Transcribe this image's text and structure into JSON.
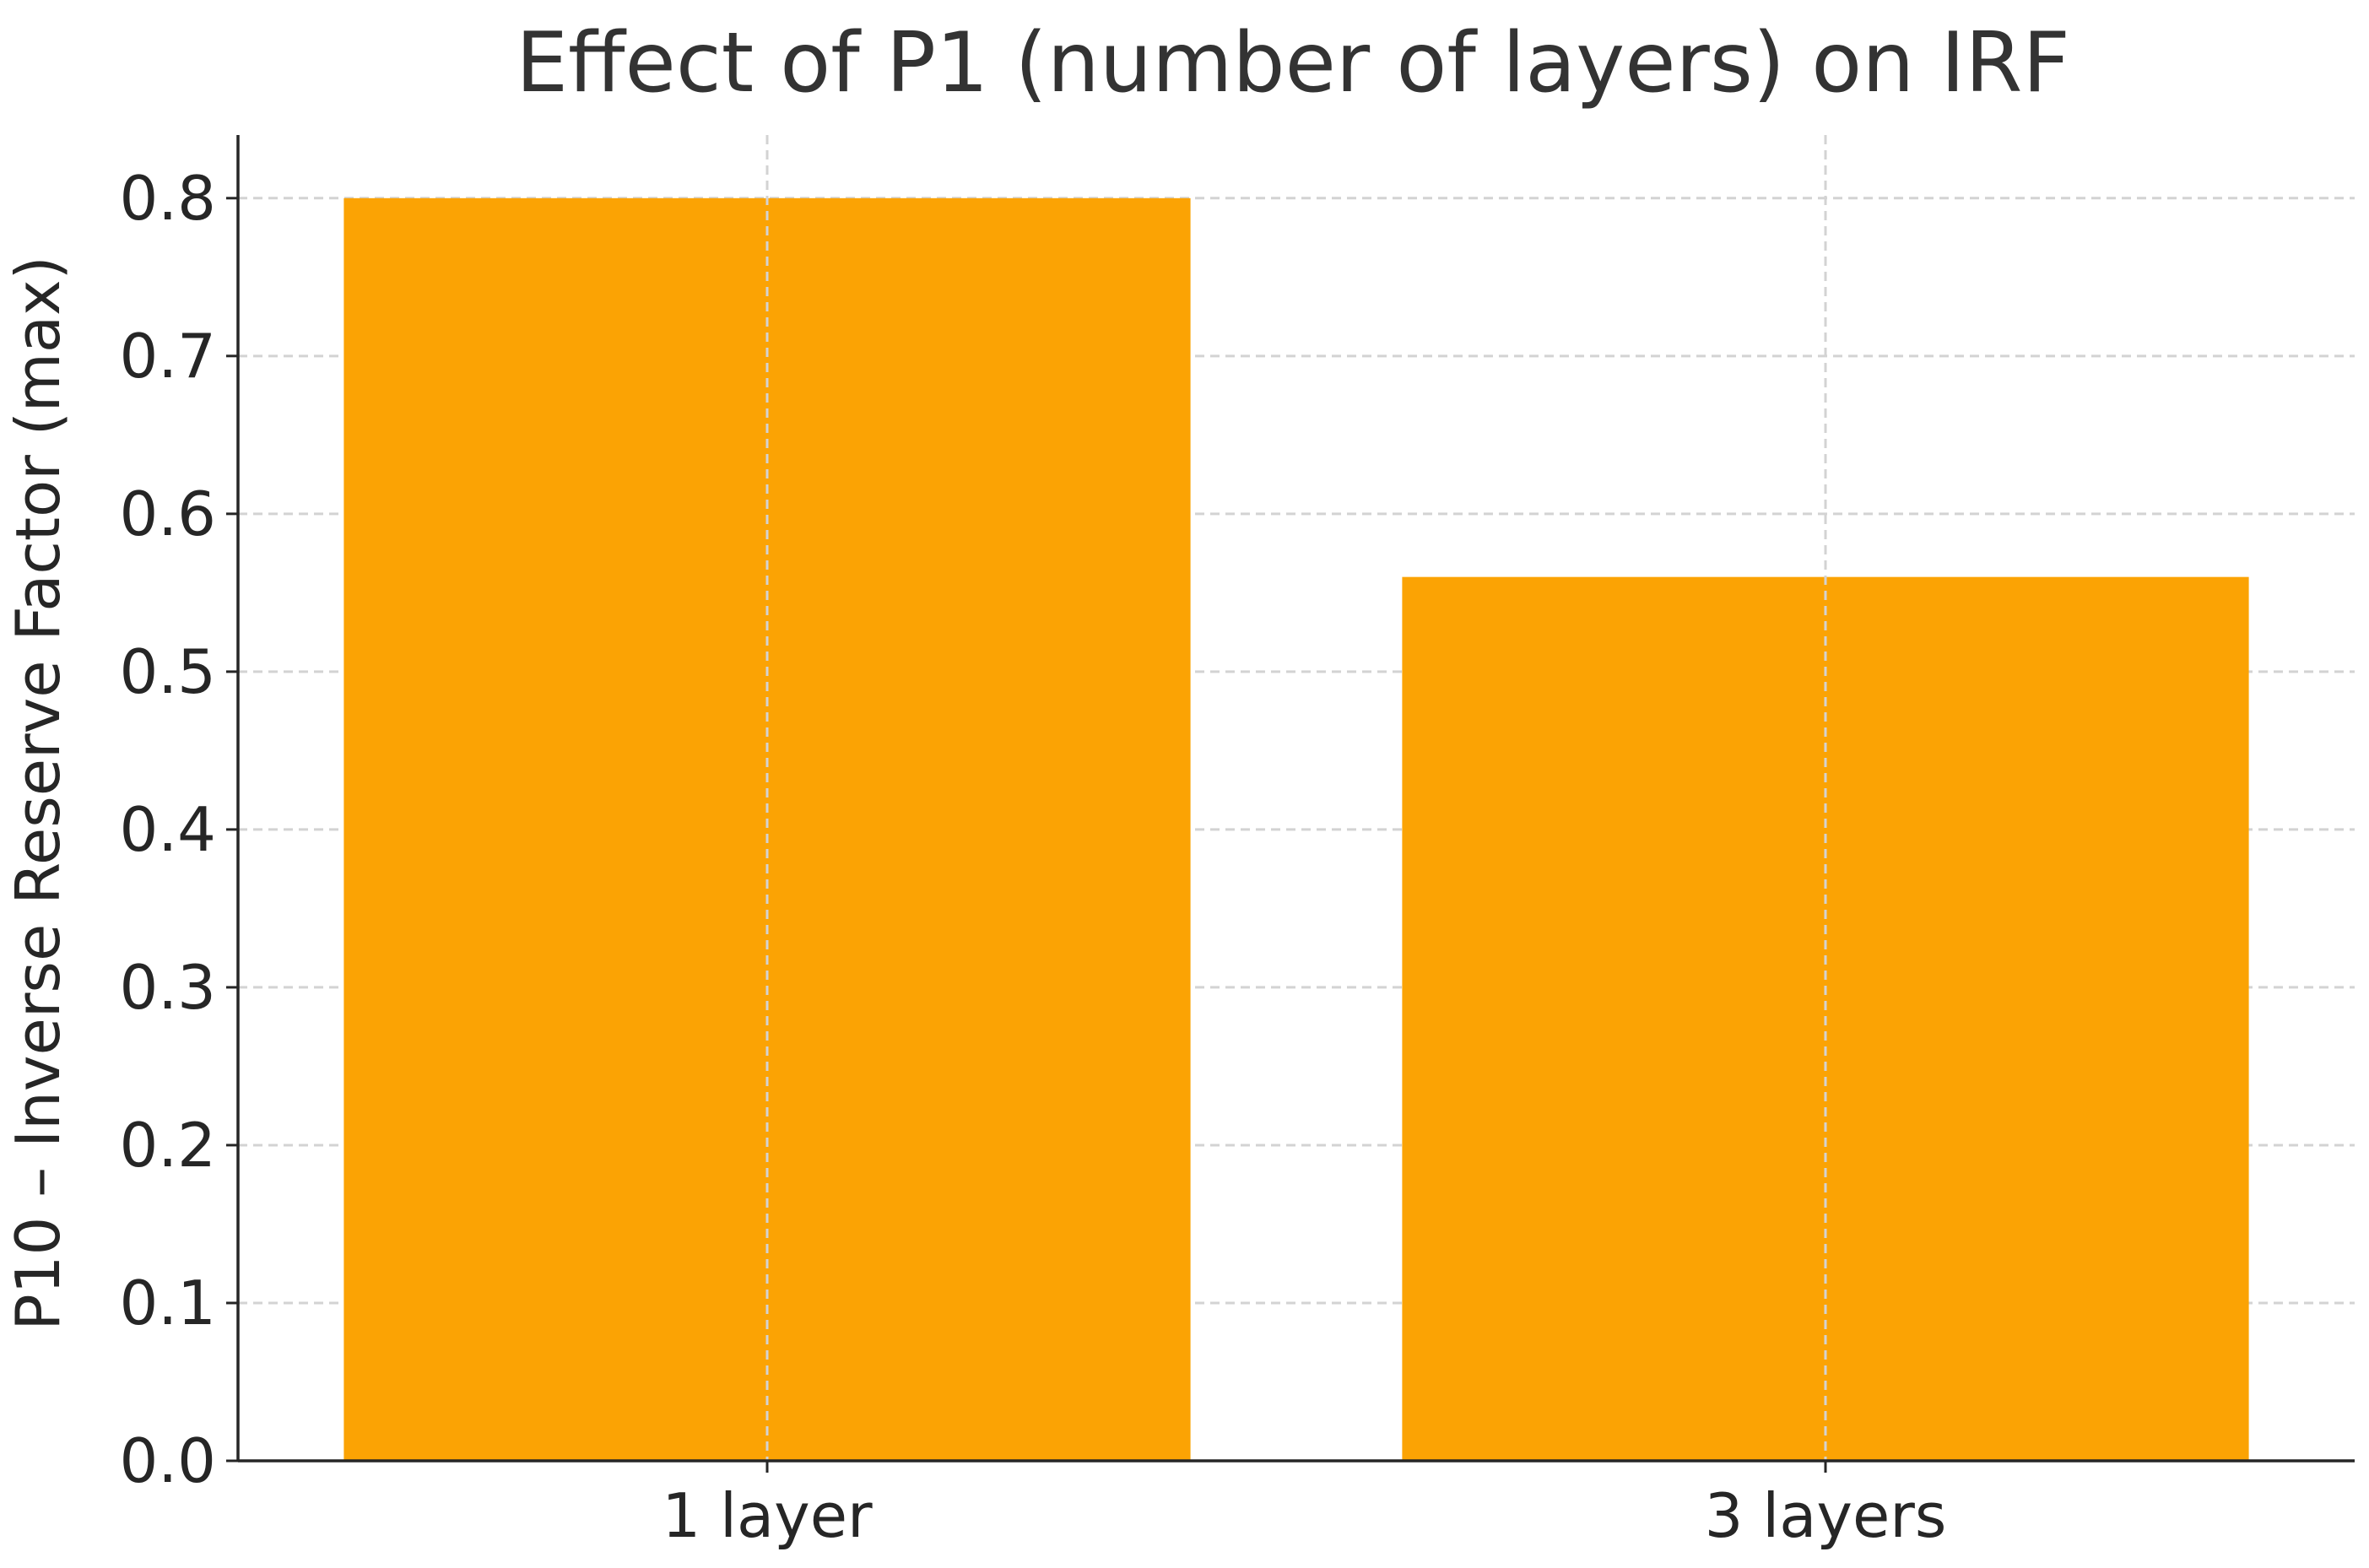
{
  "chart_data": {
    "type": "bar",
    "title": "Effect of P1 (number of layers) on IRF",
    "xlabel": "",
    "ylabel": "P10 – Inverse Reserve Factor (max)",
    "categories": [
      "1 layer",
      "3 layers"
    ],
    "values": [
      0.8,
      0.56
    ],
    "ylim": [
      0,
      0.84
    ],
    "yticks": [
      "0.0",
      "0.1",
      "0.2",
      "0.3",
      "0.4",
      "0.5",
      "0.6",
      "0.7",
      "0.8"
    ],
    "grid": true,
    "grid_style": "dashed",
    "legend": "none",
    "colors": {
      "bar": "#FBA304",
      "axis": "#262626",
      "grid": "#D3D3D3",
      "title": "#333333",
      "text": "#262626"
    }
  }
}
